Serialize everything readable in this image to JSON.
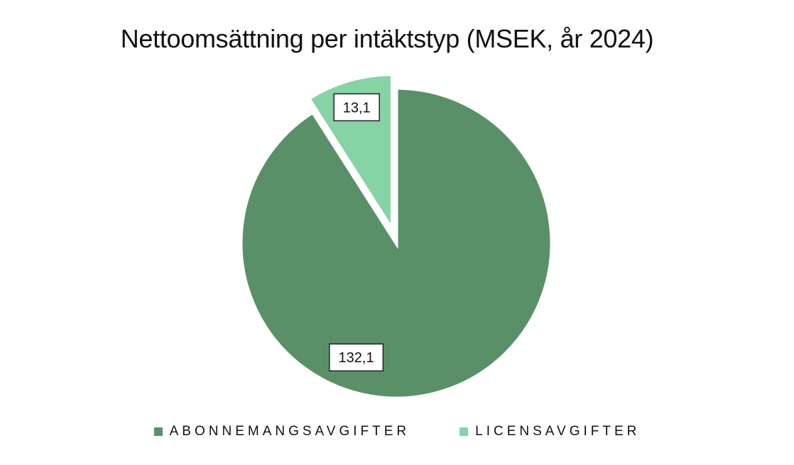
{
  "chart_data": {
    "type": "pie",
    "title": "Nettoomsättning per intäktstyp (MSEK, år 2024)",
    "categories": [
      "ABONNEMANGSAVGIFTER",
      "LICENSAVGIFTER"
    ],
    "values": [
      132.1,
      13.1
    ],
    "data_labels": [
      "132,1",
      "13,1"
    ],
    "colors": [
      "#5a9068",
      "#86d3a6"
    ],
    "exploded": [
      false,
      true
    ],
    "legend_position": "bottom"
  }
}
